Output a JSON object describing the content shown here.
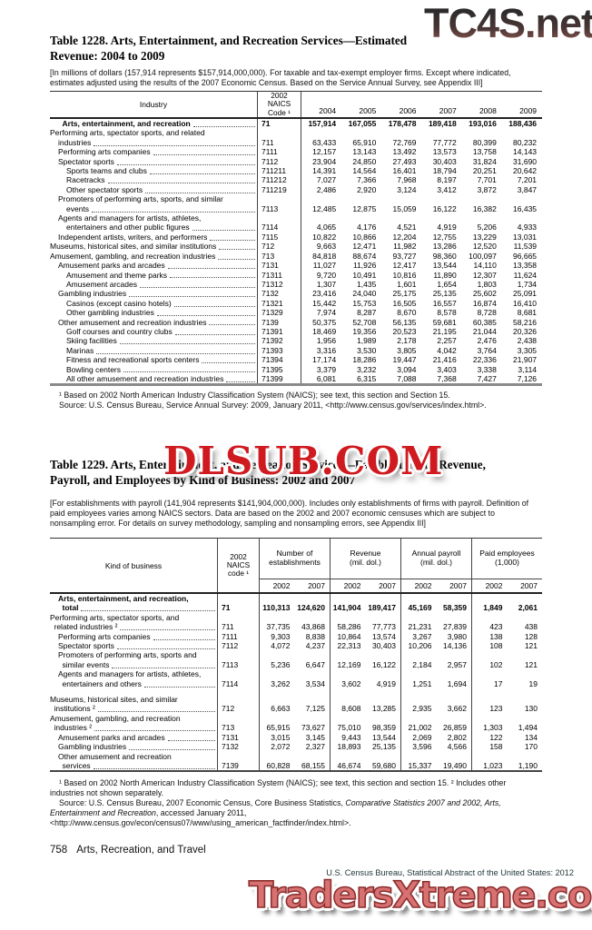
{
  "colors": {
    "watermark_red": "#cf1a1f",
    "watermark_salmon": "#d87272",
    "watermark_gradient_top": "#2b2b2b",
    "watermark_gradient_bottom": "#935a52",
    "text": "#000000"
  },
  "watermarks": {
    "top": "TC4S.net",
    "middle": "DLSUB.COM",
    "bottom": "TradersXtreme.com"
  },
  "page": {
    "footer_number": "758",
    "footer_section": "Arts, Recreation, and Travel",
    "footer_credit": "U.S. Census Bureau, Statistical Abstract of the United States: 2012"
  },
  "table1228": {
    "title_lines": [
      "Table 1228. Arts, Entertainment, and Recreation Services—Estimated",
      "Revenue: 2004 to 2009"
    ],
    "note": "[In millions of dollars (157,914 represents $157,914,000,000). For taxable and tax-exempt employer firms. Except where indicated, estimates adjusted using the results of the 2007 Economic Census. Based on the Service Annual Survey, see Appendix III]",
    "stub_header": "Industry",
    "code_header": [
      "2002",
      "NAICS",
      "Code ¹"
    ],
    "year_headers": [
      "2004",
      "2005",
      "2006",
      "2007",
      "2008",
      "2009"
    ],
    "rows": [
      {
        "bold": true,
        "lines": [
          [
            1.5,
            "Arts, entertainment, and recreation"
          ]
        ],
        "code": "71",
        "v": [
          "157,914",
          "167,055",
          "178,478",
          "189,418",
          "193,016",
          "188,436"
        ]
      },
      {
        "lines": [
          [
            0,
            "Performing arts, spectator sports, and related"
          ],
          [
            1,
            "industries"
          ]
        ],
        "code": "711",
        "v": [
          "63,433",
          "65,910",
          "72,769",
          "77,772",
          "80,399",
          "80,232"
        ]
      },
      {
        "lines": [
          [
            1,
            "Performing arts companies"
          ]
        ],
        "code": "7111",
        "v": [
          "12,157",
          "13,143",
          "13,492",
          "13,573",
          "13,758",
          "14,143"
        ]
      },
      {
        "lines": [
          [
            1,
            "Spectator sports"
          ]
        ],
        "code": "7112",
        "v": [
          "23,904",
          "24,850",
          "27,493",
          "30,403",
          "31,824",
          "31,690"
        ]
      },
      {
        "lines": [
          [
            2,
            "Sports teams and clubs"
          ]
        ],
        "code": "711211",
        "v": [
          "14,391",
          "14,564",
          "16,401",
          "18,794",
          "20,251",
          "20,642"
        ]
      },
      {
        "lines": [
          [
            2,
            "Racetracks"
          ]
        ],
        "code": "711212",
        "v": [
          "7,027",
          "7,366",
          "7,968",
          "8,197",
          "7,701",
          "7,201"
        ]
      },
      {
        "lines": [
          [
            2,
            "Other spectator sports"
          ]
        ],
        "code": "711219",
        "v": [
          "2,486",
          "2,920",
          "3,124",
          "3,412",
          "3,872",
          "3,847"
        ]
      },
      {
        "lines": [
          [
            1,
            "Promoters of performing arts, sports, and similar"
          ],
          [
            2,
            "events"
          ]
        ],
        "code": "7113",
        "v": [
          "12,485",
          "12,875",
          "15,059",
          "16,122",
          "16,382",
          "16,435"
        ]
      },
      {
        "lines": [
          [
            1,
            "Agents and managers for artists, athletes,"
          ],
          [
            2,
            "entertainers and other public figures"
          ]
        ],
        "code": "7114",
        "v": [
          "4,065",
          "4,176",
          "4,521",
          "4,919",
          "5,206",
          "4,933"
        ]
      },
      {
        "lines": [
          [
            1,
            "Independent artists, writers, and performers"
          ]
        ],
        "code": "7115",
        "v": [
          "10,822",
          "10,866",
          "12,204",
          "12,755",
          "13,229",
          "13,031"
        ]
      },
      {
        "lines": [
          [
            0,
            "Museums, historical sites, and similar institutions"
          ]
        ],
        "code": "712",
        "v": [
          "9,663",
          "12,471",
          "11,982",
          "13,286",
          "12,520",
          "11,539"
        ]
      },
      {
        "lines": [
          [
            0,
            "Amusement, gambling, and recreation industries"
          ]
        ],
        "code": "713",
        "v": [
          "84,818",
          "88,674",
          "93,727",
          "98,360",
          "100,097",
          "96,665"
        ]
      },
      {
        "lines": [
          [
            1,
            "Amusement parks and arcades"
          ]
        ],
        "code": "7131",
        "v": [
          "11,027",
          "11,926",
          "12,417",
          "13,544",
          "14,110",
          "13,358"
        ]
      },
      {
        "lines": [
          [
            2,
            "Amusement and theme parks"
          ]
        ],
        "code": "71311",
        "v": [
          "9,720",
          "10,491",
          "10,816",
          "11,890",
          "12,307",
          "11,624"
        ]
      },
      {
        "lines": [
          [
            2,
            "Amusement arcades"
          ]
        ],
        "code": "71312",
        "v": [
          "1,307",
          "1,435",
          "1,601",
          "1,654",
          "1,803",
          "1,734"
        ]
      },
      {
        "lines": [
          [
            1,
            "Gambling industries"
          ]
        ],
        "code": "7132",
        "v": [
          "23,416",
          "24,040",
          "25,175",
          "25,135",
          "25,602",
          "25,091"
        ]
      },
      {
        "lines": [
          [
            2,
            "Casinos (except casino hotels)"
          ]
        ],
        "code": "71321",
        "v": [
          "15,442",
          "15,753",
          "16,505",
          "16,557",
          "16,874",
          "16,410"
        ]
      },
      {
        "lines": [
          [
            2,
            "Other gambling industries"
          ]
        ],
        "code": "71329",
        "v": [
          "7,974",
          "8,287",
          "8,670",
          "8,578",
          "8,728",
          "8,681"
        ]
      },
      {
        "lines": [
          [
            1,
            "Other amusement and recreation industries"
          ]
        ],
        "code": "7139",
        "v": [
          "50,375",
          "52,708",
          "56,135",
          "59,681",
          "60,385",
          "58,216"
        ]
      },
      {
        "lines": [
          [
            2,
            "Golf courses and country clubs"
          ]
        ],
        "code": "71391",
        "v": [
          "18,469",
          "19,356",
          "20,523",
          "21,195",
          "21,044",
          "20,326"
        ]
      },
      {
        "lines": [
          [
            2,
            "Skiing facilities"
          ]
        ],
        "code": "71392",
        "v": [
          "1,956",
          "1,989",
          "2,178",
          "2,257",
          "2,476",
          "2,438"
        ]
      },
      {
        "lines": [
          [
            2,
            "Marinas"
          ]
        ],
        "code": "71393",
        "v": [
          "3,316",
          "3,530",
          "3,805",
          "4,042",
          "3,764",
          "3,305"
        ]
      },
      {
        "lines": [
          [
            2,
            "Fitness and recreational sports centers"
          ]
        ],
        "code": "71394",
        "v": [
          "17,174",
          "18,286",
          "19,447",
          "21,416",
          "22,336",
          "21,907"
        ]
      },
      {
        "lines": [
          [
            2,
            "Bowling centers"
          ]
        ],
        "code": "71395",
        "v": [
          "3,379",
          "3,232",
          "3,094",
          "3,403",
          "3,338",
          "3,114"
        ]
      },
      {
        "lines": [
          [
            2,
            "All other amusement and recreation industries"
          ]
        ],
        "code": "71399",
        "v": [
          "6,081",
          "6,315",
          "7,088",
          "7,368",
          "7,427",
          "7,126"
        ]
      }
    ],
    "footnote": "¹ Based on 2002 North American Industry Classification System (NAICS); see text, this section and Section 15.",
    "source": "Source: U.S. Census Bureau, Service Annual Survey: 2009, January 2011, <http://www.census.gov/services/index.html>."
  },
  "table1229": {
    "title_lines": [
      "Table 1229. Arts, Entertainment, and Recreation Services—Establishments, Revenue,",
      "Payroll, and Employees by Kind of Business: 2002 and 2007"
    ],
    "note": "[For establishments with payroll (141,904 represents $141,904,000,000). Includes only establishments of firms with payroll. Definition of paid employees varies among NAICS sectors. Data are based on the 2002 and 2007 economic censuses which are subject to nonsampling error. For details on survey methodology, sampling and nonsampling errors, see Appendix III]",
    "stub_header": "Kind of business",
    "code_header": [
      "2002",
      "NAICS",
      "code ¹"
    ],
    "groups": [
      {
        "label_lines": [
          "Number of",
          "establishments"
        ],
        "years": [
          "2002",
          "2007"
        ]
      },
      {
        "label_lines": [
          "Revenue",
          "(mil. dol.)"
        ],
        "years": [
          "2002",
          "2007"
        ]
      },
      {
        "label_lines": [
          "Annual payroll",
          "(mil. dol.)"
        ],
        "years": [
          "2002",
          "2007"
        ]
      },
      {
        "label_lines": [
          "Paid employees",
          "(1,000)"
        ],
        "years": [
          "2002",
          "2007"
        ]
      }
    ],
    "rows": [
      {
        "bold": true,
        "lines": [
          [
            1,
            "Arts, entertainment, and recreation,"
          ],
          [
            1.5,
            "total"
          ]
        ],
        "code": "71",
        "v": [
          "110,313",
          "124,620",
          "141,904",
          "189,417",
          "45,169",
          "58,359",
          "1,849",
          "2,061"
        ]
      },
      {
        "lines": [
          [
            0,
            "Performing arts, spectator sports, and"
          ],
          [
            0.5,
            "related industries ²"
          ]
        ],
        "code": "711",
        "v": [
          "37,735",
          "43,868",
          "58,286",
          "77,773",
          "21,231",
          "27,839",
          "423",
          "438"
        ]
      },
      {
        "lines": [
          [
            1,
            "Performing arts companies"
          ]
        ],
        "code": "7111",
        "v": [
          "9,303",
          "8,838",
          "10,864",
          "13,574",
          "3,267",
          "3,980",
          "138",
          "128"
        ]
      },
      {
        "lines": [
          [
            1,
            "Spectator sports"
          ]
        ],
        "code": "7112",
        "v": [
          "4,072",
          "4,237",
          "22,313",
          "30,403",
          "10,206",
          "14,136",
          "108",
          "121"
        ]
      },
      {
        "lines": [
          [
            1,
            "Promoters of performing arts, sports and"
          ],
          [
            1.5,
            "similar events"
          ]
        ],
        "code": "7113",
        "v": [
          "5,236",
          "6,647",
          "12,169",
          "16,122",
          "2,184",
          "2,957",
          "102",
          "121"
        ]
      },
      {
        "lines": [
          [
            1,
            "Agents and managers for artists, athletes,"
          ],
          [
            1.5,
            "entertainers and others"
          ]
        ],
        "code": "7114",
        "v": [
          "3,262",
          "3,534",
          "3,602",
          "4,919",
          "1,251",
          "1,694",
          "17",
          "19"
        ]
      },
      {
        "gap": true,
        "lines": [
          [
            0,
            "Museums, historical sites, and similar"
          ],
          [
            0.5,
            "institutions ²"
          ]
        ],
        "code": "712",
        "v": [
          "6,663",
          "7,125",
          "8,608",
          "13,285",
          "2,935",
          "3,662",
          "123",
          "130"
        ]
      },
      {
        "lines": [
          [
            0,
            "Amusement, gambling, and recreation"
          ],
          [
            0.5,
            "industries ²"
          ]
        ],
        "code": "713",
        "v": [
          "65,915",
          "73,627",
          "75,010",
          "98,359",
          "21,002",
          "26,859",
          "1,303",
          "1,494"
        ]
      },
      {
        "lines": [
          [
            1,
            "Amusement parks and arcades"
          ]
        ],
        "code": "7131",
        "v": [
          "3,015",
          "3,145",
          "9,443",
          "13,544",
          "2,069",
          "2,802",
          "122",
          "134"
        ]
      },
      {
        "lines": [
          [
            1,
            "Gambling industries"
          ]
        ],
        "code": "7132",
        "v": [
          "2,072",
          "2,327",
          "18,893",
          "25,135",
          "3,596",
          "4,566",
          "158",
          "170"
        ]
      },
      {
        "lines": [
          [
            1,
            "Other amusement and recreation"
          ],
          [
            1.5,
            "services"
          ]
        ],
        "code": "7139",
        "v": [
          "60,828",
          "68,155",
          "46,674",
          "59,680",
          "15,337",
          "19,490",
          "1,023",
          "1,190"
        ]
      }
    ],
    "footnote": "¹ Based on 2002 North American Industry Classification System (NAICS); see text, this section and section 15. ² Includes other industries not shown separately.",
    "source_prefix": "Source: U.S. Census Bureau, 2007 Economic Census, Core Business Statistics, ",
    "source_italic": "Comparative Statistics 2007 and 2002, Arts, Entertainment and Recreation",
    "source_suffix": ", accessed January 2011, <http://www.census.gov/econ/census07/www/using_american_factfinder/index.html>."
  }
}
